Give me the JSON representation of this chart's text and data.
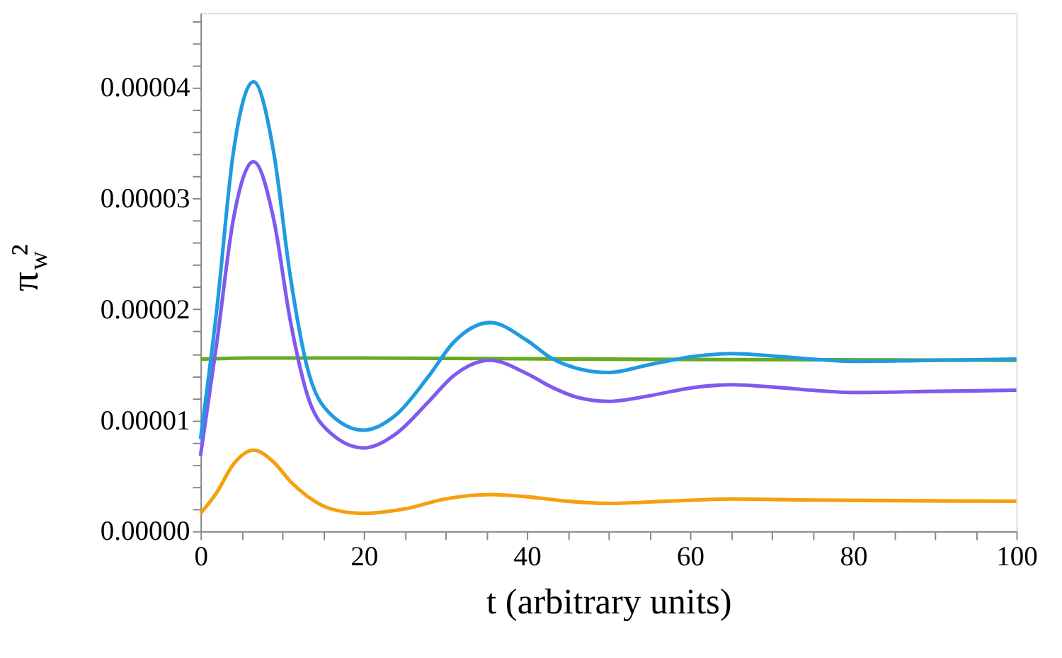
{
  "chart_data": {
    "type": "line",
    "xlabel": "t (arbitrary units)",
    "ylabel": "π$_{w}$²",
    "xlim": [
      0,
      100
    ],
    "ylim": [
      0,
      4.67e-05
    ],
    "xticks": [
      0,
      {
        "value": 5,
        "label": null
      },
      {
        "value": 10,
        "label": null
      },
      {
        "value": 15,
        "label": null
      },
      20,
      {
        "value": 25,
        "label": null
      },
      {
        "value": 30,
        "label": null
      },
      {
        "value": 35,
        "label": null
      },
      40,
      {
        "value": 45,
        "label": null
      },
      {
        "value": 50,
        "label": null
      },
      {
        "value": 55,
        "label": null
      },
      60,
      {
        "value": 65,
        "label": null
      },
      {
        "value": 70,
        "label": null
      },
      {
        "value": 75,
        "label": null
      },
      80,
      {
        "value": 85,
        "label": null
      },
      {
        "value": 90,
        "label": null
      },
      {
        "value": 95,
        "label": null
      },
      100
    ],
    "yticks": [
      {
        "value": 0,
        "label": "0.00000"
      },
      {
        "value": 2e-06,
        "label": null
      },
      {
        "value": 4e-06,
        "label": null
      },
      {
        "value": 6e-06,
        "label": null
      },
      {
        "value": 8e-06,
        "label": null
      },
      {
        "value": 1e-05,
        "label": "0.00001"
      },
      {
        "value": 1.2e-05,
        "label": null
      },
      {
        "value": 1.4e-05,
        "label": null
      },
      {
        "value": 1.6e-05,
        "label": null
      },
      {
        "value": 1.8e-05,
        "label": null
      },
      {
        "value": 2e-05,
        "label": "0.00002"
      },
      {
        "value": 2.2e-05,
        "label": null
      },
      {
        "value": 2.4e-05,
        "label": null
      },
      {
        "value": 2.6e-05,
        "label": null
      },
      {
        "value": 2.8e-05,
        "label": null
      },
      {
        "value": 3e-05,
        "label": "0.00003"
      },
      {
        "value": 3.2e-05,
        "label": null
      },
      {
        "value": 3.4e-05,
        "label": null
      },
      {
        "value": 3.6e-05,
        "label": null
      },
      {
        "value": 3.8e-05,
        "label": null
      },
      {
        "value": 4e-05,
        "label": "0.00004"
      },
      {
        "value": 4.2e-05,
        "label": null
      },
      {
        "value": 4.4e-05,
        "label": null
      },
      {
        "value": 4.6e-05,
        "label": null
      }
    ],
    "grid": false,
    "legend": false,
    "marker": "none",
    "line_style": "solid",
    "series": [
      {
        "color": "#66aa22",
        "x": [
          0,
          6,
          20,
          50,
          100
        ],
        "values": [
          1.55e-05,
          1.56e-05,
          1.56e-05,
          1.55e-05,
          1.54e-05
        ]
      },
      {
        "color": "#7f5af0",
        "x": [
          0,
          2,
          4,
          6.5,
          9,
          11,
          13,
          16,
          20,
          24,
          28,
          31,
          35.5,
          40,
          43,
          46,
          50,
          55,
          60,
          65,
          70,
          75,
          80,
          90,
          100
        ],
        "values": [
          6.8e-06,
          1.7e-05,
          2.8e-05,
          3.33e-05,
          2.8e-05,
          1.9e-05,
          1.25e-05,
          8.8e-06,
          7.5e-06,
          8.8e-06,
          1.17e-05,
          1.4e-05,
          1.54e-05,
          1.42e-05,
          1.3e-05,
          1.21e-05,
          1.17e-05,
          1.22e-05,
          1.29e-05,
          1.32e-05,
          1.3e-05,
          1.27e-05,
          1.25e-05,
          1.26e-05,
          1.27e-05
        ]
      },
      {
        "color": "#1f9be0",
        "x": [
          0,
          2,
          4,
          6.5,
          9,
          11,
          13,
          16,
          20,
          24,
          28,
          31,
          35.5,
          40,
          43,
          46,
          50,
          55,
          60,
          65,
          70,
          75,
          80,
          90,
          100
        ],
        "values": [
          8.3e-06,
          2e-05,
          3.4e-05,
          4.05e-05,
          3.4e-05,
          2.3e-05,
          1.5e-05,
          1.05e-05,
          9.1e-06,
          1.05e-05,
          1.4e-05,
          1.7e-05,
          1.88e-05,
          1.72e-05,
          1.56e-05,
          1.47e-05,
          1.43e-05,
          1.5e-05,
          1.57e-05,
          1.6e-05,
          1.58e-05,
          1.55e-05,
          1.53e-05,
          1.54e-05,
          1.55e-05
        ]
      },
      {
        "color": "#f5a00f",
        "x": [
          0,
          2,
          4,
          6.5,
          9,
          11,
          13,
          16,
          20,
          25,
          30,
          35.5,
          40,
          45,
          50,
          57,
          65,
          75,
          100
        ],
        "values": [
          1.6e-06,
          3.5e-06,
          6e-06,
          7.3e-06,
          6.2e-06,
          4.5e-06,
          3.2e-06,
          2e-06,
          1.6e-06,
          2e-06,
          2.9e-06,
          3.3e-06,
          3.1e-06,
          2.7e-06,
          2.5e-06,
          2.7e-06,
          2.9e-06,
          2.8e-06,
          2.7e-06
        ]
      }
    ]
  }
}
